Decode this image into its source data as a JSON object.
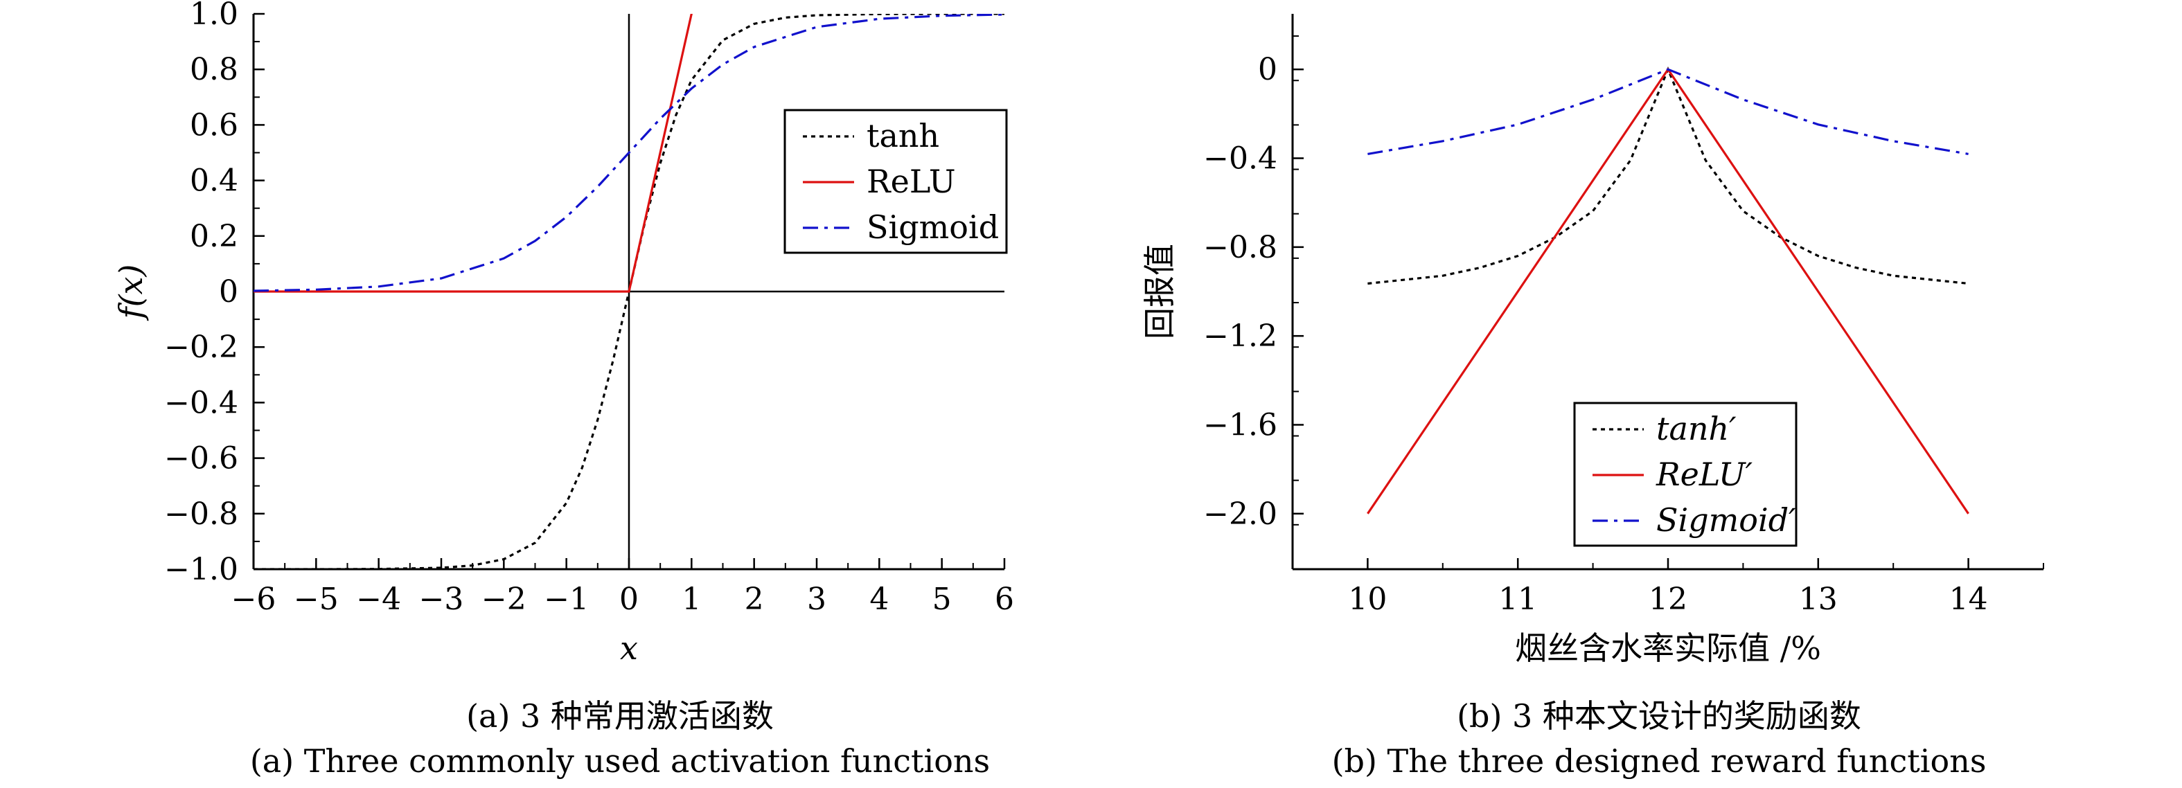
{
  "captions": {
    "a_cn": "(a) 3 种常用激活函数",
    "a_en": "(a) Three commonly used activation functions",
    "b_cn": "(b) 3 种本文设计的奖励函数",
    "b_en": "(b) The three designed reward functions"
  },
  "chart_data": [
    {
      "type": "line",
      "title": "",
      "xlabel": "x",
      "ylabel": "f(x)",
      "xlim": [
        -6,
        6
      ],
      "ylim": [
        -1,
        1
      ],
      "x_ticks": [
        "−6",
        "−5",
        "−4",
        "−3",
        "−2",
        "−1",
        "0",
        "1",
        "2",
        "3",
        "4",
        "5",
        "6"
      ],
      "y_ticks": [
        "−1.0",
        "−0.8",
        "−0.6",
        "−0.4",
        "−0.2",
        "0",
        "0.2",
        "0.4",
        "0.6",
        "0.8",
        "1.0"
      ],
      "legend_position": "upper-right",
      "series": [
        {
          "name": "tanh",
          "color": "#000000",
          "style": "dotted",
          "x": [
            -6,
            -5,
            -4,
            -3,
            -2.5,
            -2,
            -1.5,
            -1,
            -0.75,
            -0.5,
            -0.25,
            0,
            0.25,
            0.5,
            0.75,
            1,
            1.5,
            2,
            2.5,
            3,
            4,
            5,
            6
          ],
          "y": [
            -1.0,
            -0.9999,
            -0.9993,
            -0.9951,
            -0.9866,
            -0.964,
            -0.9051,
            -0.7616,
            -0.6351,
            -0.4621,
            -0.2449,
            0,
            0.2449,
            0.4621,
            0.6351,
            0.7616,
            0.9051,
            0.964,
            0.9866,
            0.9951,
            0.9993,
            0.9999,
            1.0
          ]
        },
        {
          "name": "ReLU",
          "color": "#dd1111",
          "style": "solid",
          "x": [
            -6,
            0,
            1.03
          ],
          "y": [
            0,
            0,
            1.03
          ]
        },
        {
          "name": "Sigmoid",
          "color": "#1111cc",
          "style": "dashdot",
          "x": [
            -6,
            -5,
            -4,
            -3,
            -2,
            -1.5,
            -1,
            -0.5,
            0,
            0.5,
            1,
            1.5,
            2,
            3,
            4,
            5,
            6
          ],
          "y": [
            0.0025,
            0.0067,
            0.018,
            0.0474,
            0.1192,
            0.1824,
            0.2689,
            0.3775,
            0.5,
            0.6225,
            0.7311,
            0.8176,
            0.8808,
            0.9526,
            0.982,
            0.9933,
            0.9975
          ]
        }
      ]
    },
    {
      "type": "line",
      "title": "",
      "xlabel": "烟丝含水率实际值 /%",
      "ylabel": "回报值",
      "xlim": [
        9.5,
        14.5
      ],
      "ylim": [
        -2.25,
        0.25
      ],
      "x_ticks": [
        "10",
        "11",
        "12",
        "13",
        "14"
      ],
      "y_ticks": [
        "0",
        "−0.4",
        "−0.8",
        "−1.2",
        "−1.6",
        "−2.0"
      ],
      "legend_position": "lower-center",
      "series": [
        {
          "name": "tanh′",
          "color": "#000000",
          "style": "dotted",
          "x": [
            10,
            10.25,
            10.5,
            10.75,
            11,
            11.25,
            11.5,
            11.75,
            12,
            12.25,
            12.5,
            12.75,
            13,
            13.25,
            13.5,
            13.75,
            14
          ],
          "y": [
            -0.964,
            -0.9468,
            -0.9289,
            -0.8926,
            -0.8397,
            -0.7557,
            -0.6376,
            -0.4094,
            0,
            -0.4094,
            -0.6376,
            -0.7557,
            -0.8397,
            -0.8926,
            -0.9289,
            -0.9468,
            -0.964
          ]
        },
        {
          "name": "ReLU′",
          "color": "#dd1111",
          "style": "solid",
          "x": [
            10,
            12,
            14
          ],
          "y": [
            -2.0,
            0,
            -2.0
          ]
        },
        {
          "name": "Sigmoid′",
          "color": "#1111cc",
          "style": "dashdot",
          "x": [
            10,
            10.5,
            11,
            11.5,
            12,
            12.5,
            13,
            13.5,
            14
          ],
          "y": [
            -0.381,
            -0.323,
            -0.248,
            -0.136,
            0,
            -0.136,
            -0.248,
            -0.323,
            -0.381
          ]
        }
      ]
    }
  ]
}
